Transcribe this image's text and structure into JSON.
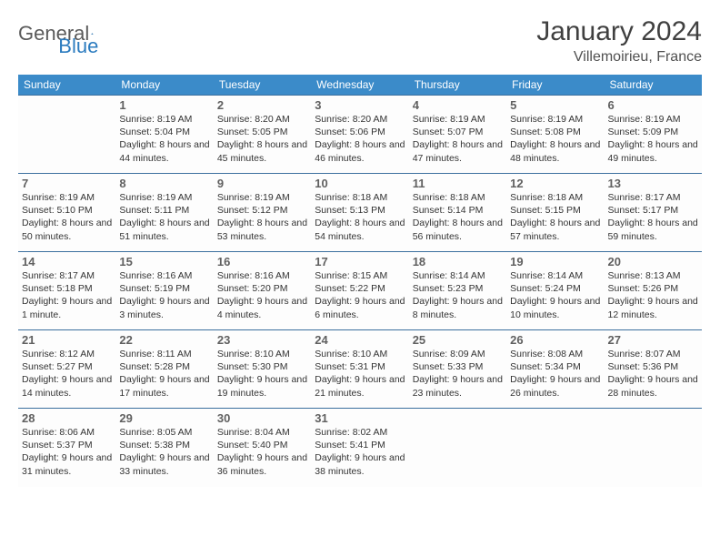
{
  "logo": {
    "text1": "General",
    "text2": "Blue"
  },
  "title": "January 2024",
  "subtitle": "Villemoirieu, France",
  "colors": {
    "header_bg": "#3b8bc9",
    "header_text": "#ffffff",
    "row_border": "#3b6f9e",
    "page_bg": "#ffffff",
    "logo_gray": "#5a5a5a",
    "logo_blue": "#2b7bbf"
  },
  "weekdays": [
    "Sunday",
    "Monday",
    "Tuesday",
    "Wednesday",
    "Thursday",
    "Friday",
    "Saturday"
  ],
  "weeks": [
    [
      null,
      {
        "n": "1",
        "sr": "8:19 AM",
        "ss": "5:04 PM",
        "dl": "8 hours and 44 minutes."
      },
      {
        "n": "2",
        "sr": "8:20 AM",
        "ss": "5:05 PM",
        "dl": "8 hours and 45 minutes."
      },
      {
        "n": "3",
        "sr": "8:20 AM",
        "ss": "5:06 PM",
        "dl": "8 hours and 46 minutes."
      },
      {
        "n": "4",
        "sr": "8:19 AM",
        "ss": "5:07 PM",
        "dl": "8 hours and 47 minutes."
      },
      {
        "n": "5",
        "sr": "8:19 AM",
        "ss": "5:08 PM",
        "dl": "8 hours and 48 minutes."
      },
      {
        "n": "6",
        "sr": "8:19 AM",
        "ss": "5:09 PM",
        "dl": "8 hours and 49 minutes."
      }
    ],
    [
      {
        "n": "7",
        "sr": "8:19 AM",
        "ss": "5:10 PM",
        "dl": "8 hours and 50 minutes."
      },
      {
        "n": "8",
        "sr": "8:19 AM",
        "ss": "5:11 PM",
        "dl": "8 hours and 51 minutes."
      },
      {
        "n": "9",
        "sr": "8:19 AM",
        "ss": "5:12 PM",
        "dl": "8 hours and 53 minutes."
      },
      {
        "n": "10",
        "sr": "8:18 AM",
        "ss": "5:13 PM",
        "dl": "8 hours and 54 minutes."
      },
      {
        "n": "11",
        "sr": "8:18 AM",
        "ss": "5:14 PM",
        "dl": "8 hours and 56 minutes."
      },
      {
        "n": "12",
        "sr": "8:18 AM",
        "ss": "5:15 PM",
        "dl": "8 hours and 57 minutes."
      },
      {
        "n": "13",
        "sr": "8:17 AM",
        "ss": "5:17 PM",
        "dl": "8 hours and 59 minutes."
      }
    ],
    [
      {
        "n": "14",
        "sr": "8:17 AM",
        "ss": "5:18 PM",
        "dl": "9 hours and 1 minute."
      },
      {
        "n": "15",
        "sr": "8:16 AM",
        "ss": "5:19 PM",
        "dl": "9 hours and 3 minutes."
      },
      {
        "n": "16",
        "sr": "8:16 AM",
        "ss": "5:20 PM",
        "dl": "9 hours and 4 minutes."
      },
      {
        "n": "17",
        "sr": "8:15 AM",
        "ss": "5:22 PM",
        "dl": "9 hours and 6 minutes."
      },
      {
        "n": "18",
        "sr": "8:14 AM",
        "ss": "5:23 PM",
        "dl": "9 hours and 8 minutes."
      },
      {
        "n": "19",
        "sr": "8:14 AM",
        "ss": "5:24 PM",
        "dl": "9 hours and 10 minutes."
      },
      {
        "n": "20",
        "sr": "8:13 AM",
        "ss": "5:26 PM",
        "dl": "9 hours and 12 minutes."
      }
    ],
    [
      {
        "n": "21",
        "sr": "8:12 AM",
        "ss": "5:27 PM",
        "dl": "9 hours and 14 minutes."
      },
      {
        "n": "22",
        "sr": "8:11 AM",
        "ss": "5:28 PM",
        "dl": "9 hours and 17 minutes."
      },
      {
        "n": "23",
        "sr": "8:10 AM",
        "ss": "5:30 PM",
        "dl": "9 hours and 19 minutes."
      },
      {
        "n": "24",
        "sr": "8:10 AM",
        "ss": "5:31 PM",
        "dl": "9 hours and 21 minutes."
      },
      {
        "n": "25",
        "sr": "8:09 AM",
        "ss": "5:33 PM",
        "dl": "9 hours and 23 minutes."
      },
      {
        "n": "26",
        "sr": "8:08 AM",
        "ss": "5:34 PM",
        "dl": "9 hours and 26 minutes."
      },
      {
        "n": "27",
        "sr": "8:07 AM",
        "ss": "5:36 PM",
        "dl": "9 hours and 28 minutes."
      }
    ],
    [
      {
        "n": "28",
        "sr": "8:06 AM",
        "ss": "5:37 PM",
        "dl": "9 hours and 31 minutes."
      },
      {
        "n": "29",
        "sr": "8:05 AM",
        "ss": "5:38 PM",
        "dl": "9 hours and 33 minutes."
      },
      {
        "n": "30",
        "sr": "8:04 AM",
        "ss": "5:40 PM",
        "dl": "9 hours and 36 minutes."
      },
      {
        "n": "31",
        "sr": "8:02 AM",
        "ss": "5:41 PM",
        "dl": "9 hours and 38 minutes."
      },
      null,
      null,
      null
    ]
  ],
  "labels": {
    "sunrise": "Sunrise: ",
    "sunset": "Sunset: ",
    "daylight": "Daylight: "
  }
}
